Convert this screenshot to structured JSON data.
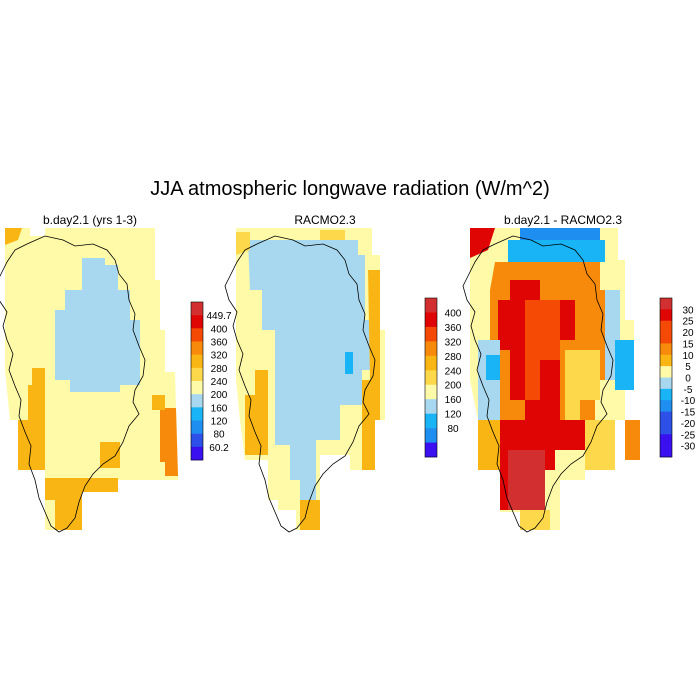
{
  "title": "JJA atmospheric longwave radiation (W/m^2)",
  "colors": {
    "c1": "#3a10f0",
    "c2": "#2c50e8",
    "c3": "#1e8ff0",
    "c4": "#19b4f5",
    "c5": "#a8d8f0",
    "c6": "#fffaa8",
    "c7": "#fcd84a",
    "c8": "#f9b514",
    "c9": "#f78a0a",
    "c10": "#f44a05",
    "c11": "#e00505",
    "c12": "#d23030"
  },
  "panels": [
    {
      "title": "b.day2.1 (yrs 1-3)",
      "colorbar": {
        "labels": [
          "449.7",
          "400",
          "360",
          "320",
          "280",
          "240",
          "200",
          "160",
          "120",
          "80",
          "60.2"
        ],
        "colors": [
          "c12",
          "c11",
          "c10",
          "c9",
          "c8",
          "c7",
          "c6",
          "c5",
          "c4",
          "c3",
          "c2",
          "c1"
        ]
      }
    },
    {
      "title": "RACMO2.3",
      "colorbar": {
        "labels": [
          "400",
          "360",
          "320",
          "280",
          "240",
          "200",
          "160",
          "120",
          "80"
        ],
        "colors": [
          "c12",
          "c11",
          "c10",
          "c9",
          "c8",
          "c7",
          "c6",
          "c5",
          "c4",
          "c3",
          "c1"
        ]
      }
    },
    {
      "title": "b.day2.1 - RACMO2.3",
      "colorbar": {
        "labels": [
          "30",
          "25",
          "20",
          "15",
          "10",
          "5",
          "0",
          "-5",
          "-10",
          "-15",
          "-20",
          "-25",
          "-30"
        ],
        "colors": [
          "c12",
          "c11",
          "c10",
          "c10",
          "c9",
          "c8",
          "c6",
          "c5",
          "c4",
          "c3",
          "c2",
          "c2",
          "c1",
          "c1"
        ]
      }
    }
  ]
}
